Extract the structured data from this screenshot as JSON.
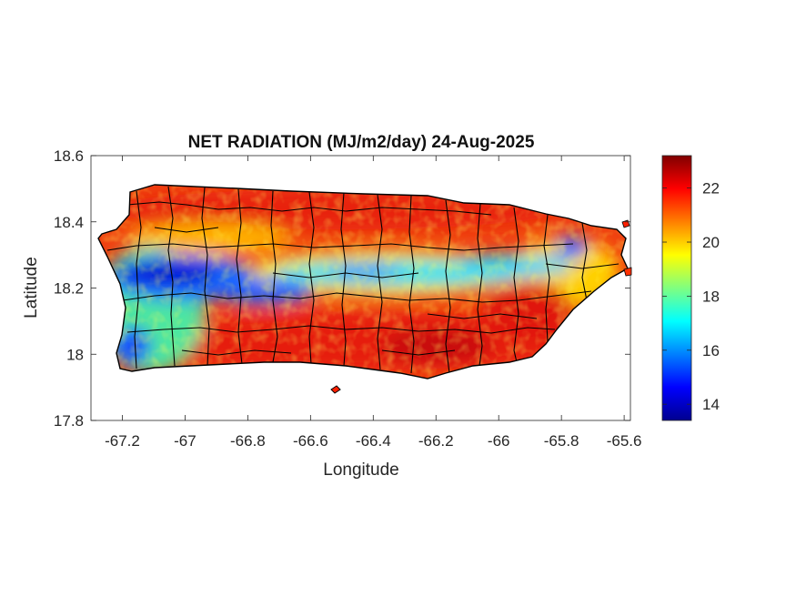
{
  "chart_data": {
    "type": "heatmap",
    "title": "NET RADIATION (MJ/m2/day) 24-Aug-2025",
    "xlabel": "Longitude",
    "ylabel": "Latitude",
    "xlim": [
      -67.3,
      -65.58
    ],
    "ylim": [
      17.8,
      18.6
    ],
    "x_ticks": [
      "-67.2",
      "-67",
      "-66.8",
      "-66.6",
      "-66.4",
      "-66.2",
      "-66",
      "-65.8",
      "-65.6"
    ],
    "x_tick_values": [
      -67.2,
      -67.0,
      -66.8,
      -66.6,
      -66.4,
      -66.2,
      -66.0,
      -65.8,
      -65.6
    ],
    "y_ticks": [
      "17.8",
      "18",
      "18.2",
      "18.4",
      "18.6"
    ],
    "y_tick_values": [
      17.8,
      18.0,
      18.2,
      18.4,
      18.6
    ],
    "colorbar": {
      "colormap": "jet",
      "range": [
        13.4,
        23.2
      ],
      "ticks": [
        "14",
        "16",
        "18",
        "20",
        "22"
      ],
      "tick_values": [
        14,
        16,
        18,
        20,
        22
      ]
    },
    "region": "Puerto Rico municipalities",
    "pattern": [
      {
        "area": "west interior band (-67.2 to -66.7, 18.12 to 18.26)",
        "approx_value": 15
      },
      {
        "area": "central band (-66.6 to -65.9, ~18.26)",
        "approx_value": 16.5
      },
      {
        "area": "north coast",
        "approx_value": 22
      },
      {
        "area": "south coast",
        "approx_value": 22.5
      },
      {
        "area": "east",
        "approx_value": 21.5
      },
      {
        "area": "northeast El Yunque",
        "approx_value": 16
      }
    ]
  },
  "colors": {
    "background": "#ffffff",
    "axes": "#262626",
    "borders": "#000000"
  }
}
